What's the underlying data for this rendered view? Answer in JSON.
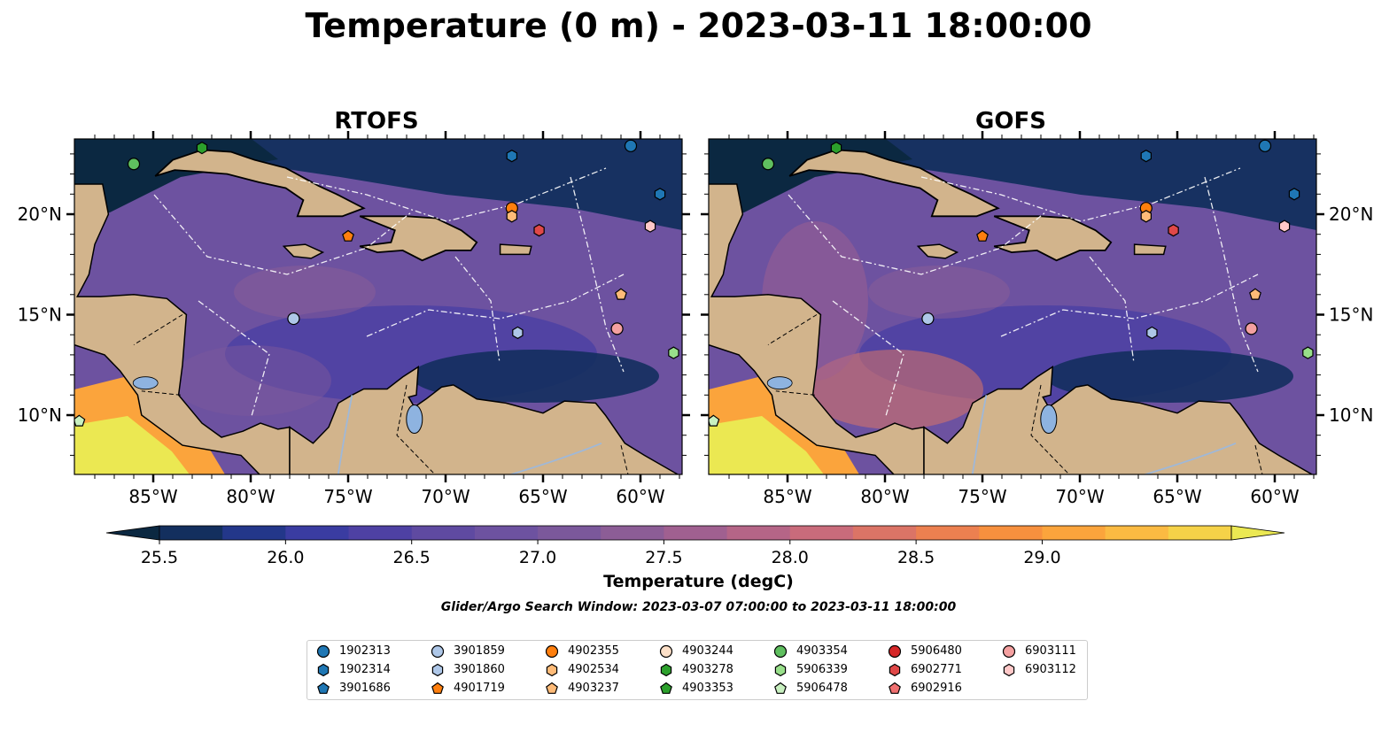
{
  "title": "Temperature (0 m) - 2023-03-11 18:00:00",
  "panels": [
    {
      "title": "RTOFS"
    },
    {
      "title": "GOFS"
    }
  ],
  "map": {
    "lon_ticks": [
      "85°W",
      "80°W",
      "75°W",
      "70°W",
      "65°W",
      "60°W"
    ],
    "lat_ticks": [
      "20°N",
      "15°N",
      "10°N"
    ],
    "land_color": "#d2b48c",
    "river_color": "#9fb8d8",
    "lake_color": "#8eb3e0"
  },
  "colorbar": {
    "label": "Temperature (degC)",
    "ticks": [
      "25.5",
      "26.0",
      "26.5",
      "27.0",
      "27.5",
      "28.0",
      "28.5",
      "29.0"
    ],
    "colors": [
      "#0b2841",
      "#132f5e",
      "#23378a",
      "#3a3ca1",
      "#4e41a3",
      "#5f4aa1",
      "#6d52a0",
      "#7b589b",
      "#8c5d96",
      "#a06090",
      "#b56587",
      "#c96b7b",
      "#db7466",
      "#ec8050",
      "#f7903e",
      "#fba43c",
      "#fbba42",
      "#f5d248",
      "#ebe852"
    ]
  },
  "search_window": "Glider/Argo Search Window: 2023-03-07 07:00:00 to 2023-03-11 18:00:00",
  "legend": [
    {
      "id": "1902313",
      "marker": "circle",
      "color": "#1f77b4"
    },
    {
      "id": "1902314",
      "marker": "hexagon",
      "color": "#1f77b4"
    },
    {
      "id": "3901686",
      "marker": "pentagon",
      "color": "#1f77b4"
    },
    {
      "id": "3901859",
      "marker": "circle",
      "color": "#aec7e8"
    },
    {
      "id": "3901860",
      "marker": "hexagon",
      "color": "#aec7e8"
    },
    {
      "id": "4901719",
      "marker": "pentagon",
      "color": "#ff7f0e"
    },
    {
      "id": "4902355",
      "marker": "circle",
      "color": "#ff7f0e"
    },
    {
      "id": "4902534",
      "marker": "hexagon",
      "color": "#ffbb78"
    },
    {
      "id": "4903237",
      "marker": "pentagon",
      "color": "#ffbb78"
    },
    {
      "id": "4903244",
      "marker": "circle",
      "color": "#fde0c8"
    },
    {
      "id": "4903278",
      "marker": "hexagon",
      "color": "#2ca02c"
    },
    {
      "id": "4903353",
      "marker": "pentagon",
      "color": "#2ca02c"
    },
    {
      "id": "4903354",
      "marker": "circle",
      "color": "#5fbf5f"
    },
    {
      "id": "5906339",
      "marker": "hexagon",
      "color": "#98df8a"
    },
    {
      "id": "5906478",
      "marker": "pentagon",
      "color": "#c8f0c0"
    },
    {
      "id": "5906480",
      "marker": "circle",
      "color": "#d62728"
    },
    {
      "id": "6902771",
      "marker": "hexagon",
      "color": "#e04848"
    },
    {
      "id": "6902916",
      "marker": "pentagon",
      "color": "#f07070"
    },
    {
      "id": "6903111",
      "marker": "circle",
      "color": "#f4a0a0"
    },
    {
      "id": "6903112",
      "marker": "hexagon",
      "color": "#ffc8c8"
    }
  ]
}
